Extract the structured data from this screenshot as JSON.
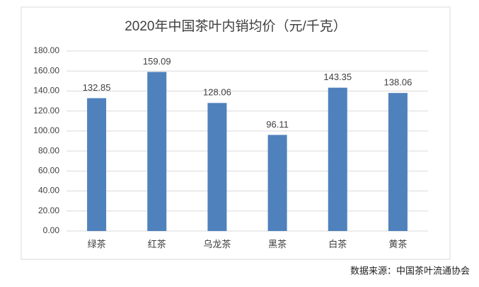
{
  "chart_data": {
    "type": "bar",
    "title": "2020年中国茶叶内销均价（元/千克）",
    "categories": [
      "绿茶",
      "红茶",
      "乌龙茶",
      "黑茶",
      "白茶",
      "黄茶"
    ],
    "values": [
      132.85,
      159.09,
      128.06,
      96.11,
      143.35,
      138.06
    ],
    "color": "#4f81bd",
    "ylim": [
      0,
      180
    ],
    "yticks": [
      {
        "value": 0,
        "label": "0.00"
      },
      {
        "value": 20,
        "label": "20.00"
      },
      {
        "value": 40,
        "label": "40.00"
      },
      {
        "value": 60,
        "label": "60.00"
      },
      {
        "value": 80,
        "label": "80.00"
      },
      {
        "value": 100,
        "label": "100.00"
      },
      {
        "value": 120,
        "label": "120.00"
      },
      {
        "value": 140,
        "label": "140.00"
      },
      {
        "value": 160,
        "label": "160.00"
      },
      {
        "value": 180,
        "label": "180.00"
      }
    ],
    "grid": true,
    "source": "数据来源：中国茶叶流通协会"
  }
}
